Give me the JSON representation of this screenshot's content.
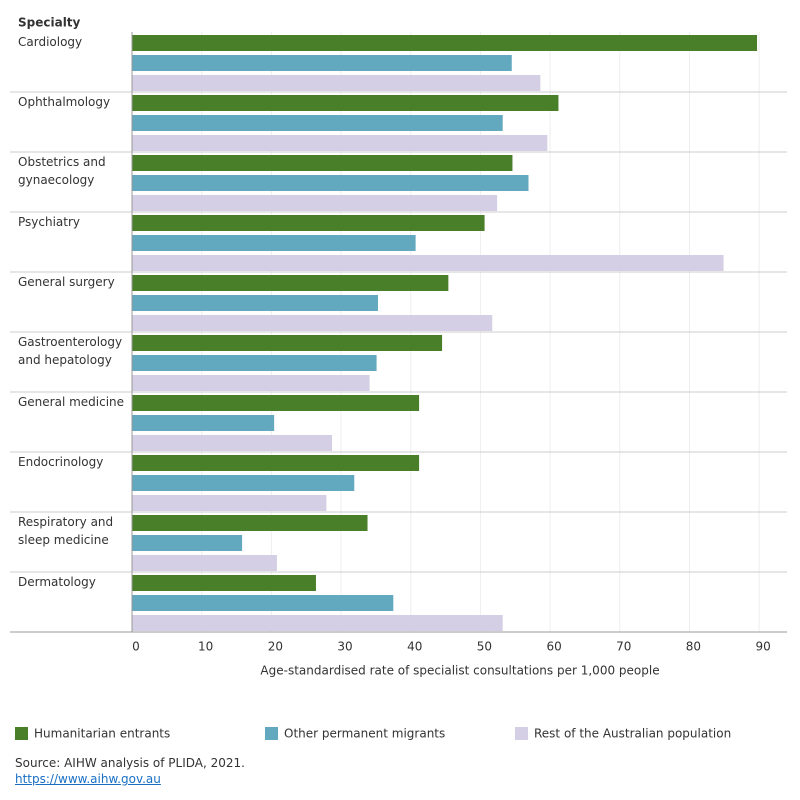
{
  "chart_data": {
    "type": "bar",
    "orientation": "horizontal",
    "y_label": "Specialty",
    "x_label": "Age-standardised rate of specialist consultations per 1,000 people",
    "categories": [
      "Cardiology",
      "Ophthalmology",
      "Obstetrics and gynaecology",
      "Psychiatry",
      "General surgery",
      "Gastroenterology and hepatology",
      "General medicine",
      "Endocrinology",
      "Respiratory and sleep medicine",
      "Dermatology"
    ],
    "series": [
      {
        "name": "Humanitarian entrants",
        "color": "#4a7f2a",
        "values": [
          89.7,
          61.2,
          54.6,
          50.6,
          45.4,
          44.5,
          41.2,
          41.2,
          33.8,
          26.4
        ]
      },
      {
        "name": "Other permanent migrants",
        "color": "#62a8bf",
        "values": [
          54.5,
          53.2,
          56.9,
          40.7,
          35.3,
          35.1,
          20.4,
          31.9,
          15.8,
          37.5
        ]
      },
      {
        "name": "Rest of the Australian population",
        "color": "#d4cfe4",
        "values": [
          58.6,
          59.6,
          52.4,
          84.9,
          51.7,
          34.1,
          28.7,
          27.9,
          20.8,
          53.2
        ]
      }
    ],
    "xlim": [
      0,
      94
    ],
    "xticks": [
      0,
      10,
      20,
      30,
      40,
      50,
      60,
      70,
      80,
      90
    ],
    "grid": true,
    "source": "Source: AIHW analysis of PLIDA, 2021.",
    "link": "https://www.aihw.gov.au"
  }
}
